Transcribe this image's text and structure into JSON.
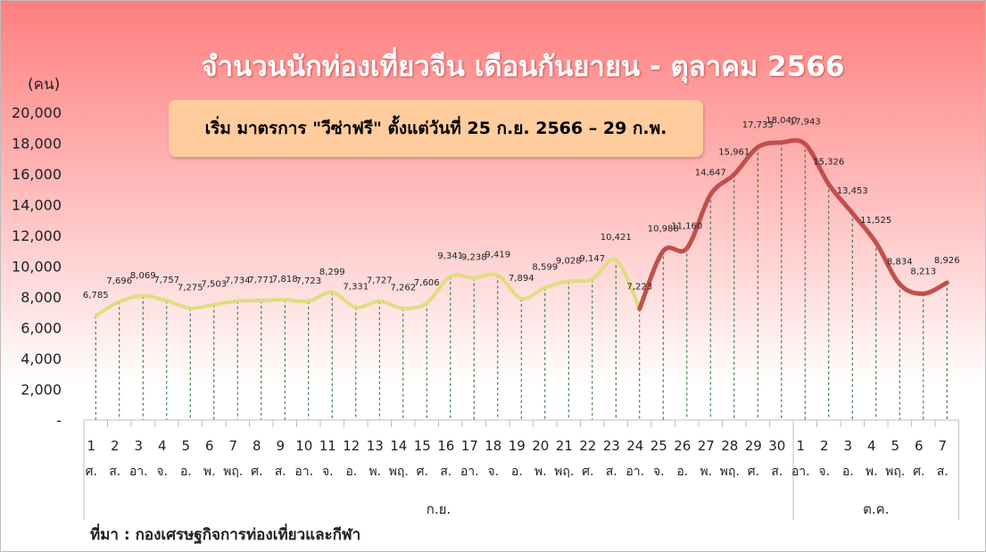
{
  "chart_data": {
    "type": "line",
    "title": "จำนวนนักท่องเที่ยวจีน เดือนกันยายน - ตุลาคม 2566",
    "annotation": "เริ่ม มาตรการ \"วีซ่าฟรี\" ตั้งแต่วันที่ 25 ก.ย. 2566 – 29 ก.พ.",
    "ylabel": "(คน)",
    "source": "ที่มา : กองเศรษฐกิจการท่องเที่ยวและกีฬา",
    "ylim": [
      0,
      20000
    ],
    "yticks": [
      "-",
      "2,000",
      "4,000",
      "6,000",
      "8,000",
      "10,000",
      "12,000",
      "14,000",
      "16,000",
      "18,000",
      "20,000"
    ],
    "days": [
      "1",
      "2",
      "3",
      "4",
      "5",
      "6",
      "7",
      "8",
      "9",
      "10",
      "11",
      "12",
      "13",
      "14",
      "15",
      "16",
      "17",
      "18",
      "19",
      "20",
      "21",
      "22",
      "23",
      "24",
      "25",
      "26",
      "27",
      "28",
      "29",
      "30",
      "1",
      "2",
      "3",
      "4",
      "5",
      "6",
      "7"
    ],
    "weekdays": [
      "ศ.",
      "ส.",
      "อา.",
      "จ.",
      "อ.",
      "พ.",
      "พฤ.",
      "ศ.",
      "ส.",
      "อา.",
      "จ.",
      "อ.",
      "พ.",
      "พฤ.",
      "ศ.",
      "ส.",
      "อา.",
      "จ.",
      "อ.",
      "พ.",
      "พฤ.",
      "ศ.",
      "ส.",
      "อา.",
      "จ.",
      "อ.",
      "พ.",
      "พฤ.",
      "ศ.",
      "ส.",
      "อา.",
      "จ.",
      "อ.",
      "พ.",
      "พฤ.",
      "ศ.",
      "ส."
    ],
    "months": [
      {
        "label": "ก.ย.",
        "start": 0,
        "end": 29
      },
      {
        "label": "ต.ค.",
        "start": 30,
        "end": 36
      }
    ],
    "values": [
      6785,
      7696,
      8069,
      7757,
      7275,
      7503,
      7734,
      7771,
      7818,
      7723,
      8299,
      7331,
      7727,
      7262,
      7606,
      9341,
      9238,
      9419,
      7894,
      8599,
      9028,
      9147,
      10421,
      7223,
      10988,
      11160,
      14647,
      15961,
      17733,
      18040,
      17943,
      15326,
      13453,
      11525,
      8834,
      8213,
      8926
    ],
    "labels": [
      "6,785",
      "7,696",
      "8,069",
      "7,757",
      "7,275",
      "7,503",
      "7,734",
      "7,771",
      "7,818",
      "7,723",
      "8,299",
      "7,331",
      "7,727",
      "7,262",
      "7,606",
      "9,341",
      "9,238",
      "9,419",
      "7,894",
      "8,599",
      "9,028",
      "9,147",
      "10,421",
      "7,223",
      "10,988",
      "11,160",
      "14,647",
      "15,961",
      "17,733",
      "18,040",
      "17,943",
      "15,326",
      "13,453",
      "11,525",
      "8,834",
      "8,213",
      "8,926"
    ],
    "series": [
      {
        "color": "#dede7f",
        "from": 0,
        "to": 23
      },
      {
        "color": "#c0504d",
        "from": 23,
        "to": 36
      }
    ],
    "grid": false,
    "drop_lines": true,
    "drop_line_color": "#1e6b1e"
  }
}
